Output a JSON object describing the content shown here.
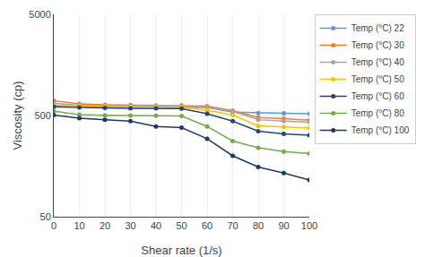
{
  "chart_data": {
    "type": "line",
    "xlabel": "Shear rate (1/s)",
    "ylabel": "Viscosity (cp)",
    "x": [
      0,
      10,
      20,
      30,
      40,
      50,
      60,
      70,
      80,
      90,
      100
    ],
    "series": [
      {
        "name": "Temp (°C) 22",
        "color": "#5b9bd5",
        "values": [
          615,
          610,
          608,
          607,
          607,
          607,
          600,
          540,
          530,
          525,
          520
        ]
      },
      {
        "name": "Temp (°C) 30",
        "color": "#ed7d31",
        "values": [
          700,
          650,
          640,
          636,
          630,
          628,
          620,
          560,
          478,
          465,
          450
        ]
      },
      {
        "name": "Temp (°C) 40",
        "color": "#a5a5a5",
        "values": [
          660,
          632,
          626,
          622,
          618,
          616,
          608,
          550,
          455,
          440,
          430
        ]
      },
      {
        "name": "Temp (°C) 50",
        "color": "#ffc000",
        "values": [
          630,
          618,
          612,
          608,
          607,
          605,
          565,
          505,
          395,
          385,
          375
        ]
      },
      {
        "name": "Temp (°C) 60",
        "color": "#264478",
        "values": [
          610,
          600,
          595,
          590,
          588,
          585,
          520,
          440,
          350,
          330,
          320
        ]
      },
      {
        "name": "Temp (°C) 80",
        "color": "#70ad47",
        "values": [
          550,
          510,
          502,
          500,
          498,
          495,
          390,
          280,
          240,
          220,
          210
        ]
      },
      {
        "name": "Temp (°C) 100",
        "color": "#1f3864",
        "values": [
          505,
          470,
          455,
          440,
          390,
          380,
          295,
          200,
          155,
          135,
          115
        ]
      }
    ],
    "xlim": [
      0,
      100
    ],
    "xticks": [
      0,
      10,
      20,
      30,
      40,
      50,
      60,
      70,
      80,
      90,
      100
    ],
    "ylim": [
      50,
      5000
    ],
    "yticks": [
      50,
      500,
      5000
    ],
    "log": "y",
    "grid": true,
    "legend": "upper right",
    "marker": "circle",
    "line_style": "solid"
  }
}
